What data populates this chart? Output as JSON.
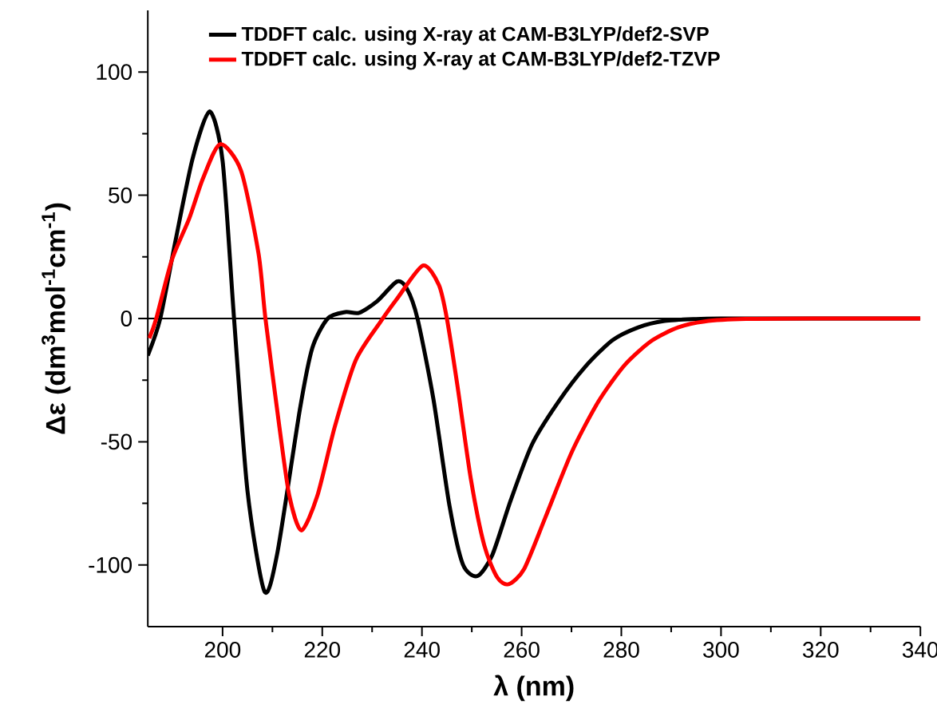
{
  "chart_data": {
    "type": "line",
    "xlabel": "λ (nm)",
    "ylabel": "Δε (dm$^{3}$mol$^{-1}$cm$^{-1}$)",
    "xlim": [
      185,
      340
    ],
    "xticks": [
      200,
      220,
      240,
      260,
      280,
      300,
      320,
      340
    ],
    "ylim": [
      -125,
      125
    ],
    "yticks": [
      -100,
      -50,
      0,
      50,
      100
    ],
    "legend": "top",
    "grid": false,
    "marker": "none",
    "line_style": "solid",
    "ref_lines": [
      {
        "axis": "y",
        "value": 0,
        "color": "#000000"
      }
    ],
    "series": [
      {
        "name": "TDDFT calc. using X-ray at CAM-B3LYP/def2-SVP",
        "color": "#000000",
        "x": [
          185,
          187.5,
          190.5,
          194,
          197.4,
          200,
          202.3,
          205,
          208.4,
          211,
          215.5,
          218,
          221.1,
          224.6,
          227.4,
          231,
          235,
          237,
          239.1,
          242.3,
          245.5,
          248.2,
          251.1,
          254.1,
          257.8,
          262.1,
          267.4,
          272.7,
          278.1,
          283.4,
          288.7,
          295,
          300,
          310,
          320,
          340
        ],
        "values": [
          -15,
          0,
          31,
          65,
          84,
          64,
          0,
          -70,
          -110.7,
          -95,
          -37,
          -12,
          0,
          2.6,
          2.3,
          7,
          15,
          12,
          0,
          -32.7,
          -75.7,
          -99.7,
          -104.5,
          -96,
          -73.8,
          -51,
          -33.7,
          -19.7,
          -9,
          -3.6,
          -1,
          -0.2,
          0,
          0,
          0,
          0
        ]
      },
      {
        "name": "TDDFT calc. using X-ray at CAM-B3LYP/def2-TZVP",
        "color": "#ff0000",
        "x": [
          185.3,
          186.7,
          189.8,
          193.3,
          196.1,
          199.5,
          203.7,
          207.2,
          208.6,
          211.4,
          213.4,
          215.8,
          219,
          222.5,
          226.7,
          231.6,
          235,
          240.2,
          243.4,
          245,
          247.1,
          249.8,
          252.5,
          255.1,
          257.4,
          260.5,
          264.7,
          270.1,
          275.4,
          280.7,
          286.1,
          291.4,
          296.7,
          305,
          320,
          340
        ],
        "values": [
          -8,
          0,
          23.6,
          40.5,
          57,
          70.7,
          60,
          26.5,
          0,
          -44,
          -72,
          -86,
          -72,
          -44,
          -17,
          -1.6,
          8,
          21.5,
          13.6,
          0,
          -27,
          -65,
          -92,
          -105,
          -107.8,
          -101.6,
          -81,
          -54,
          -33.7,
          -18.8,
          -9,
          -3.6,
          -1.2,
          -0.2,
          0,
          0
        ]
      }
    ]
  }
}
